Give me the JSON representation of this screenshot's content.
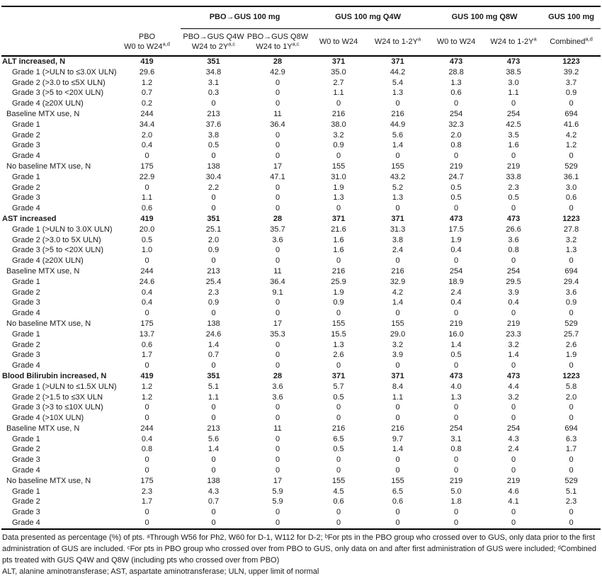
{
  "table": {
    "spanners": [
      {
        "label": "PBO→GUS 100 mg",
        "span": 2
      },
      {
        "label": "GUS 100 mg Q4W",
        "span": 2
      },
      {
        "label": "GUS 100 mg Q8W",
        "span": 2
      },
      {
        "label": "GUS 100 mg",
        "span": 1
      }
    ],
    "columns": [
      {
        "lines": [
          "PBO",
          "W0 to W24"
        ],
        "sup": "a,d"
      },
      {
        "lines": [
          "PBO→GUS Q4W",
          "W24 to 2Y"
        ],
        "sup": "a,c"
      },
      {
        "lines": [
          "PBO→GUS Q8W",
          "W24 to 1Y"
        ],
        "sup": "a,c"
      },
      {
        "lines": [
          "W0 to W24"
        ],
        "sup": ""
      },
      {
        "lines": [
          "W24 to 1-2Y"
        ],
        "sup": "a"
      },
      {
        "lines": [
          "W0 to W24"
        ],
        "sup": ""
      },
      {
        "lines": [
          "W24 to 1-2Y"
        ],
        "sup": "a"
      },
      {
        "lines": [
          "Combined"
        ],
        "sup": "a,d"
      }
    ],
    "rows": [
      {
        "label": "ALT increased, N",
        "indent": 0,
        "bold": true,
        "values": [
          "419",
          "351",
          "28",
          "371",
          "371",
          "473",
          "473",
          "1223"
        ]
      },
      {
        "label": "Grade 1 (>ULN to ≤3.0X ULN)",
        "indent": 2,
        "bold": false,
        "values": [
          "29.6",
          "34.8",
          "42.9",
          "35.0",
          "44.2",
          "28.8",
          "38.5",
          "39.2"
        ]
      },
      {
        "label": "Grade 2 (>3.0 to ≤5X ULN)",
        "indent": 2,
        "bold": false,
        "values": [
          "1.2",
          "3.1",
          "0",
          "2.7",
          "5.4",
          "1.3",
          "3.0",
          "3.7"
        ]
      },
      {
        "label": "Grade 3 (>5 to <20X ULN)",
        "indent": 2,
        "bold": false,
        "values": [
          "0.7",
          "0.3",
          "0",
          "1.1",
          "1.3",
          "0.6",
          "1.1",
          "0.9"
        ]
      },
      {
        "label": "Grade 4 (≥20X ULN)",
        "indent": 2,
        "bold": false,
        "values": [
          "0.2",
          "0",
          "0",
          "0",
          "0",
          "0",
          "0",
          "0"
        ]
      },
      {
        "label": "Baseline MTX use, N",
        "indent": 1,
        "bold": false,
        "values": [
          "244",
          "213",
          "11",
          "216",
          "216",
          "254",
          "254",
          "694"
        ]
      },
      {
        "label": "Grade 1",
        "indent": 2,
        "bold": false,
        "values": [
          "34.4",
          "37.6",
          "36.4",
          "38.0",
          "44.9",
          "32.3",
          "42.5",
          "41.6"
        ]
      },
      {
        "label": "Grade 2",
        "indent": 2,
        "bold": false,
        "values": [
          "2.0",
          "3.8",
          "0",
          "3.2",
          "5.6",
          "2.0",
          "3.5",
          "4.2"
        ]
      },
      {
        "label": "Grade 3",
        "indent": 2,
        "bold": false,
        "values": [
          "0.4",
          "0.5",
          "0",
          "0.9",
          "1.4",
          "0.8",
          "1.6",
          "1.2"
        ]
      },
      {
        "label": "Grade 4",
        "indent": 2,
        "bold": false,
        "values": [
          "0",
          "0",
          "0",
          "0",
          "0",
          "0",
          "0",
          "0"
        ]
      },
      {
        "label": "No baseline MTX use, N",
        "indent": 1,
        "bold": false,
        "values": [
          "175",
          "138",
          "17",
          "155",
          "155",
          "219",
          "219",
          "529"
        ]
      },
      {
        "label": "Grade 1",
        "indent": 2,
        "bold": false,
        "values": [
          "22.9",
          "30.4",
          "47.1",
          "31.0",
          "43.2",
          "24.7",
          "33.8",
          "36.1"
        ]
      },
      {
        "label": "Grade 2",
        "indent": 2,
        "bold": false,
        "values": [
          "0",
          "2.2",
          "0",
          "1.9",
          "5.2",
          "0.5",
          "2.3",
          "3.0"
        ]
      },
      {
        "label": "Grade 3",
        "indent": 2,
        "bold": false,
        "values": [
          "1.1",
          "0",
          "0",
          "1.3",
          "1.3",
          "0.5",
          "0.5",
          "0.6"
        ]
      },
      {
        "label": "Grade 4",
        "indent": 2,
        "bold": false,
        "values": [
          "0.6",
          "0",
          "0",
          "0",
          "0",
          "0",
          "0",
          "0"
        ]
      },
      {
        "label": "AST increased",
        "indent": 0,
        "bold": true,
        "values": [
          "419",
          "351",
          "28",
          "371",
          "371",
          "473",
          "473",
          "1223"
        ]
      },
      {
        "label": "Grade 1 (>ULN to 3.0X ULN)",
        "indent": 2,
        "bold": false,
        "values": [
          "20.0",
          "25.1",
          "35.7",
          "21.6",
          "31.3",
          "17.5",
          "26.6",
          "27.8"
        ]
      },
      {
        "label": "Grade 2 (>3.0 to 5X ULN)",
        "indent": 2,
        "bold": false,
        "values": [
          "0.5",
          "2.0",
          "3.6",
          "1.6",
          "3.8",
          "1.9",
          "3.6",
          "3.2"
        ]
      },
      {
        "label": "Grade 3 (>5 to <20X ULN)",
        "indent": 2,
        "bold": false,
        "values": [
          "1.0",
          "0.9",
          "0",
          "1.6",
          "2.4",
          "0.4",
          "0.8",
          "1.3"
        ]
      },
      {
        "label": "Grade 4 (≥20X ULN)",
        "indent": 2,
        "bold": false,
        "values": [
          "0",
          "0",
          "0",
          "0",
          "0",
          "0",
          "0",
          "0"
        ]
      },
      {
        "label": "Baseline MTX use, N",
        "indent": 1,
        "bold": false,
        "values": [
          "244",
          "213",
          "11",
          "216",
          "216",
          "254",
          "254",
          "694"
        ]
      },
      {
        "label": "Grade 1",
        "indent": 2,
        "bold": false,
        "values": [
          "24.6",
          "25.4",
          "36.4",
          "25.9",
          "32.9",
          "18.9",
          "29.5",
          "29.4"
        ]
      },
      {
        "label": "Grade 2",
        "indent": 2,
        "bold": false,
        "values": [
          "0.4",
          "2.3",
          "9.1",
          "1.9",
          "4.2",
          "2.4",
          "3.9",
          "3.6"
        ]
      },
      {
        "label": "Grade 3",
        "indent": 2,
        "bold": false,
        "values": [
          "0.4",
          "0.9",
          "0",
          "0.9",
          "1.4",
          "0.4",
          "0.4",
          "0.9"
        ]
      },
      {
        "label": "Grade 4",
        "indent": 2,
        "bold": false,
        "values": [
          "0",
          "0",
          "0",
          "0",
          "0",
          "0",
          "0",
          "0"
        ]
      },
      {
        "label": "No baseline MTX use, N",
        "indent": 1,
        "bold": false,
        "values": [
          "175",
          "138",
          "17",
          "155",
          "155",
          "219",
          "219",
          "529"
        ]
      },
      {
        "label": "Grade 1",
        "indent": 2,
        "bold": false,
        "values": [
          "13.7",
          "24.6",
          "35.3",
          "15.5",
          "29.0",
          "16.0",
          "23.3",
          "25.7"
        ]
      },
      {
        "label": "Grade 2",
        "indent": 2,
        "bold": false,
        "values": [
          "0.6",
          "1.4",
          "0",
          "1.3",
          "3.2",
          "1.4",
          "3.2",
          "2.6"
        ]
      },
      {
        "label": "Grade 3",
        "indent": 2,
        "bold": false,
        "values": [
          "1.7",
          "0.7",
          "0",
          "2.6",
          "3.9",
          "0.5",
          "1.4",
          "1.9"
        ]
      },
      {
        "label": "Grade 4",
        "indent": 2,
        "bold": false,
        "values": [
          "0",
          "0",
          "0",
          "0",
          "0",
          "0",
          "0",
          "0"
        ]
      },
      {
        "label": "Blood Bilirubin increased, N",
        "indent": 0,
        "bold": true,
        "values": [
          "419",
          "351",
          "28",
          "371",
          "371",
          "473",
          "473",
          "1223"
        ]
      },
      {
        "label": "Grade 1 (>ULN to ≤1.5X ULN)",
        "indent": 2,
        "bold": false,
        "values": [
          "1.2",
          "5.1",
          "3.6",
          "5.7",
          "8.4",
          "4.0",
          "4.4",
          "5.8"
        ]
      },
      {
        "label": "Grade 2 (>1.5 to ≤3X ULN",
        "indent": 2,
        "bold": false,
        "values": [
          "1.2",
          "1.1",
          "3.6",
          "0.5",
          "1.1",
          "1.3",
          "3.2",
          "2.0"
        ]
      },
      {
        "label": "Grade 3 (>3 to ≤10X ULN)",
        "indent": 2,
        "bold": false,
        "values": [
          "0",
          "0",
          "0",
          "0",
          "0",
          "0",
          "0",
          "0"
        ]
      },
      {
        "label": "Grade 4 (>10X ULN)",
        "indent": 2,
        "bold": false,
        "values": [
          "0",
          "0",
          "0",
          "0",
          "0",
          "0",
          "0",
          "0"
        ]
      },
      {
        "label": "Baseline MTX use, N",
        "indent": 1,
        "bold": false,
        "values": [
          "244",
          "213",
          "11",
          "216",
          "216",
          "254",
          "254",
          "694"
        ]
      },
      {
        "label": "Grade 1",
        "indent": 2,
        "bold": false,
        "values": [
          "0.4",
          "5.6",
          "0",
          "6.5",
          "9.7",
          "3.1",
          "4.3",
          "6.3"
        ]
      },
      {
        "label": "Grade 2",
        "indent": 2,
        "bold": false,
        "values": [
          "0.8",
          "1.4",
          "0",
          "0.5",
          "1.4",
          "0.8",
          "2.4",
          "1.7"
        ]
      },
      {
        "label": "Grade 3",
        "indent": 2,
        "bold": false,
        "values": [
          "0",
          "0",
          "0",
          "0",
          "0",
          "0",
          "0",
          "0"
        ]
      },
      {
        "label": "Grade 4",
        "indent": 2,
        "bold": false,
        "values": [
          "0",
          "0",
          "0",
          "0",
          "0",
          "0",
          "0",
          "0"
        ]
      },
      {
        "label": "No baseline MTX use, N",
        "indent": 1,
        "bold": false,
        "values": [
          "175",
          "138",
          "17",
          "155",
          "155",
          "219",
          "219",
          "529"
        ]
      },
      {
        "label": "Grade 1",
        "indent": 2,
        "bold": false,
        "values": [
          "2.3",
          "4.3",
          "5.9",
          "4.5",
          "6.5",
          "5.0",
          "4.6",
          "5.1"
        ]
      },
      {
        "label": "Grade 2",
        "indent": 2,
        "bold": false,
        "values": [
          "1.7",
          "0.7",
          "5.9",
          "0.6",
          "0.6",
          "1.8",
          "4.1",
          "2.3"
        ]
      },
      {
        "label": "Grade 3",
        "indent": 2,
        "bold": false,
        "values": [
          "0",
          "0",
          "0",
          "0",
          "0",
          "0",
          "0",
          "0"
        ]
      },
      {
        "label": "Grade 4",
        "indent": 2,
        "bold": false,
        "values": [
          "0",
          "0",
          "0",
          "0",
          "0",
          "0",
          "0",
          "0"
        ]
      }
    ]
  },
  "footnotes": [
    "Data presented as percentage (%) of pts. ᵃThrough W56 for Ph2, W60 for D-1, W112 for D-2; ᵇFor pts in the PBO group who crossed over to GUS, only data prior to the first administration of GUS are included. ᶜFor pts in PBO group who crossed over from PBO to GUS, only data on and after first administration of GUS were included; ᵈCombined pts treated with GUS Q4W and Q8W (including pts who crossed over from PBO)",
    "ALT, alanine aminotransferase; AST, aspartate aminotransferase; ULN, upper limit of normal"
  ]
}
